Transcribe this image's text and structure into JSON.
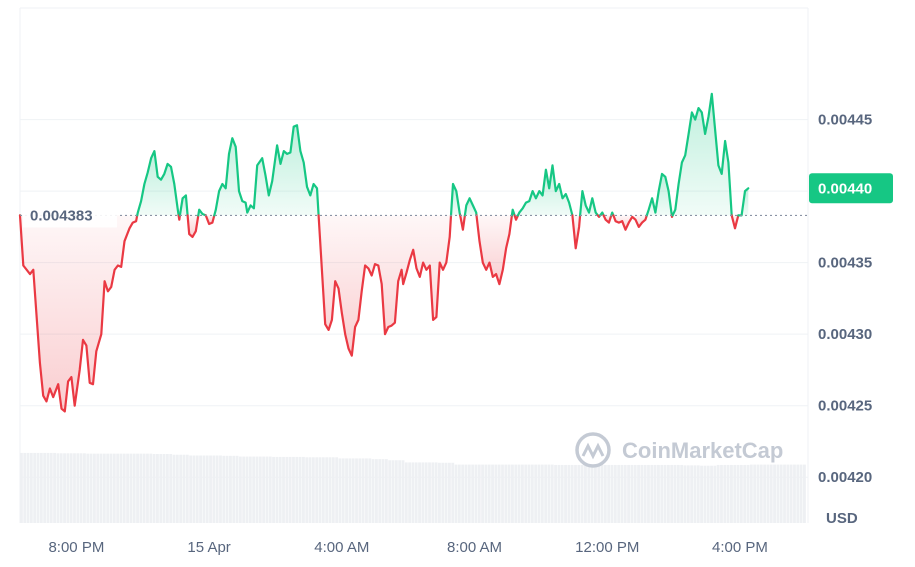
{
  "watermark": "CoinMarketCap",
  "chart_data": {
    "type": "line",
    "unit": "USD",
    "reference_price": "0.004383",
    "reference_value": 0.004383,
    "current_price": "0.00440",
    "current_value": 0.004402,
    "colors": {
      "up": "#16c784",
      "down": "#ea3943",
      "current_badge": "#16c784"
    },
    "ylim": [
      0.004168,
      0.004528
    ],
    "y_ticks": [
      {
        "label": "0.00445",
        "value": 0.00445
      },
      {
        "label": "0.00440",
        "value": 0.0044
      },
      {
        "label": "0.00435",
        "value": 0.00435
      },
      {
        "label": "0.00430",
        "value": 0.0043
      },
      {
        "label": "0.00425",
        "value": 0.00425
      },
      {
        "label": "0.00420",
        "value": 0.0042
      }
    ],
    "x_ticks": [
      "8:00 PM",
      "15 Apr",
      "4:00 AM",
      "8:00 AM",
      "12:00 PM",
      "4:00 PM"
    ],
    "x_tick_positions": [
      1.7,
      5.7,
      9.7,
      13.7,
      17.7,
      21.7
    ],
    "x_range": [
      0,
      23.75
    ],
    "grid": true,
    "series": [
      {
        "values": [
          [
            0.0,
            0.004383
          ],
          [
            0.1,
            0.004348
          ],
          [
            0.3,
            0.004342
          ],
          [
            0.4,
            0.004345
          ],
          [
            0.6,
            0.00428
          ],
          [
            0.7,
            0.004257
          ],
          [
            0.8,
            0.004253
          ],
          [
            0.9,
            0.004262
          ],
          [
            1.0,
            0.004256
          ],
          [
            1.15,
            0.004265
          ],
          [
            1.25,
            0.004248
          ],
          [
            1.35,
            0.004246
          ],
          [
            1.45,
            0.004267
          ],
          [
            1.55,
            0.00427
          ],
          [
            1.65,
            0.00425
          ],
          [
            1.8,
            0.004275
          ],
          [
            1.9,
            0.004296
          ],
          [
            2.0,
            0.004292
          ],
          [
            2.1,
            0.004266
          ],
          [
            2.2,
            0.004265
          ],
          [
            2.3,
            0.004288
          ],
          [
            2.45,
            0.0043
          ],
          [
            2.55,
            0.004337
          ],
          [
            2.65,
            0.00433
          ],
          [
            2.75,
            0.004333
          ],
          [
            2.85,
            0.004345
          ],
          [
            2.95,
            0.004348
          ],
          [
            3.05,
            0.004347
          ],
          [
            3.15,
            0.004365
          ],
          [
            3.3,
            0.004374
          ],
          [
            3.4,
            0.004378
          ],
          [
            3.5,
            0.004379
          ],
          [
            3.55,
            0.004385
          ],
          [
            3.65,
            0.004393
          ],
          [
            3.75,
            0.004405
          ],
          [
            3.85,
            0.004413
          ],
          [
            3.95,
            0.004423
          ],
          [
            4.05,
            0.004428
          ],
          [
            4.15,
            0.00441
          ],
          [
            4.25,
            0.004408
          ],
          [
            4.35,
            0.004412
          ],
          [
            4.45,
            0.004419
          ],
          [
            4.55,
            0.004417
          ],
          [
            4.65,
            0.004405
          ],
          [
            4.75,
            0.004388
          ],
          [
            4.8,
            0.00438
          ],
          [
            4.9,
            0.004395
          ],
          [
            5.0,
            0.004397
          ],
          [
            5.1,
            0.00437
          ],
          [
            5.2,
            0.004368
          ],
          [
            5.3,
            0.004372
          ],
          [
            5.4,
            0.004387
          ],
          [
            5.5,
            0.004384
          ],
          [
            5.6,
            0.004383
          ],
          [
            5.7,
            0.004377
          ],
          [
            5.8,
            0.004378
          ],
          [
            5.9,
            0.004387
          ],
          [
            6.0,
            0.0044
          ],
          [
            6.1,
            0.004405
          ],
          [
            6.2,
            0.004402
          ],
          [
            6.3,
            0.004426
          ],
          [
            6.4,
            0.004437
          ],
          [
            6.5,
            0.004431
          ],
          [
            6.6,
            0.0044
          ],
          [
            6.7,
            0.004393
          ],
          [
            6.8,
            0.004392
          ],
          [
            6.85,
            0.004385
          ],
          [
            6.95,
            0.00439
          ],
          [
            7.05,
            0.004388
          ],
          [
            7.15,
            0.004418
          ],
          [
            7.3,
            0.004423
          ],
          [
            7.4,
            0.004411
          ],
          [
            7.5,
            0.004397
          ],
          [
            7.6,
            0.004407
          ],
          [
            7.75,
            0.004432
          ],
          [
            7.85,
            0.004419
          ],
          [
            7.95,
            0.004428
          ],
          [
            8.05,
            0.004426
          ],
          [
            8.15,
            0.004427
          ],
          [
            8.25,
            0.004445
          ],
          [
            8.35,
            0.004446
          ],
          [
            8.45,
            0.004428
          ],
          [
            8.55,
            0.00442
          ],
          [
            8.65,
            0.004403
          ],
          [
            8.75,
            0.004397
          ],
          [
            8.85,
            0.004405
          ],
          [
            8.95,
            0.004402
          ],
          [
            9.0,
            0.004383
          ],
          [
            9.1,
            0.004345
          ],
          [
            9.2,
            0.004307
          ],
          [
            9.3,
            0.004303
          ],
          [
            9.4,
            0.00431
          ],
          [
            9.5,
            0.004337
          ],
          [
            9.6,
            0.004332
          ],
          [
            9.7,
            0.004315
          ],
          [
            9.8,
            0.0043
          ],
          [
            9.9,
            0.00429
          ],
          [
            10.0,
            0.004285
          ],
          [
            10.1,
            0.004305
          ],
          [
            10.2,
            0.00431
          ],
          [
            10.3,
            0.00433
          ],
          [
            10.4,
            0.004348
          ],
          [
            10.5,
            0.004346
          ],
          [
            10.6,
            0.004341
          ],
          [
            10.7,
            0.004349
          ],
          [
            10.8,
            0.004348
          ],
          [
            10.9,
            0.004335
          ],
          [
            11.0,
            0.0043
          ],
          [
            11.1,
            0.004305
          ],
          [
            11.2,
            0.004306
          ],
          [
            11.3,
            0.004308
          ],
          [
            11.4,
            0.004337
          ],
          [
            11.5,
            0.004345
          ],
          [
            11.55,
            0.004335
          ],
          [
            11.65,
            0.004343
          ],
          [
            11.75,
            0.004352
          ],
          [
            11.85,
            0.004359
          ],
          [
            11.95,
            0.004346
          ],
          [
            12.05,
            0.00434
          ],
          [
            12.15,
            0.00435
          ],
          [
            12.25,
            0.004345
          ],
          [
            12.35,
            0.004348
          ],
          [
            12.45,
            0.00431
          ],
          [
            12.55,
            0.004312
          ],
          [
            12.65,
            0.00435
          ],
          [
            12.75,
            0.004345
          ],
          [
            12.85,
            0.00435
          ],
          [
            12.95,
            0.004368
          ],
          [
            13.05,
            0.004405
          ],
          [
            13.15,
            0.0044
          ],
          [
            13.25,
            0.004385
          ],
          [
            13.35,
            0.004373
          ],
          [
            13.45,
            0.00439
          ],
          [
            13.55,
            0.004395
          ],
          [
            13.65,
            0.00439
          ],
          [
            13.75,
            0.004385
          ],
          [
            13.85,
            0.004365
          ],
          [
            13.95,
            0.00435
          ],
          [
            14.05,
            0.004345
          ],
          [
            14.15,
            0.00435
          ],
          [
            14.25,
            0.00434
          ],
          [
            14.35,
            0.004342
          ],
          [
            14.45,
            0.004335
          ],
          [
            14.55,
            0.004345
          ],
          [
            14.65,
            0.00436
          ],
          [
            14.75,
            0.00437
          ],
          [
            14.85,
            0.004387
          ],
          [
            14.95,
            0.00438
          ],
          [
            15.05,
            0.004385
          ],
          [
            15.15,
            0.004388
          ],
          [
            15.25,
            0.004392
          ],
          [
            15.35,
            0.004393
          ],
          [
            15.45,
            0.0044
          ],
          [
            15.55,
            0.004395
          ],
          [
            15.65,
            0.0044
          ],
          [
            15.75,
            0.004397
          ],
          [
            15.85,
            0.004415
          ],
          [
            15.95,
            0.004402
          ],
          [
            16.05,
            0.004418
          ],
          [
            16.15,
            0.0044
          ],
          [
            16.25,
            0.004405
          ],
          [
            16.35,
            0.004395
          ],
          [
            16.45,
            0.004398
          ],
          [
            16.55,
            0.004392
          ],
          [
            16.65,
            0.004383
          ],
          [
            16.75,
            0.00436
          ],
          [
            16.85,
            0.004375
          ],
          [
            16.95,
            0.0044
          ],
          [
            17.05,
            0.00439
          ],
          [
            17.15,
            0.004385
          ],
          [
            17.25,
            0.004395
          ],
          [
            17.35,
            0.004385
          ],
          [
            17.45,
            0.004382
          ],
          [
            17.55,
            0.004385
          ],
          [
            17.65,
            0.00438
          ],
          [
            17.75,
            0.004378
          ],
          [
            17.85,
            0.004385
          ],
          [
            17.95,
            0.004379
          ],
          [
            18.05,
            0.004378
          ],
          [
            18.15,
            0.004379
          ],
          [
            18.25,
            0.004373
          ],
          [
            18.35,
            0.004378
          ],
          [
            18.45,
            0.004382
          ],
          [
            18.55,
            0.00438
          ],
          [
            18.65,
            0.004375
          ],
          [
            18.75,
            0.004378
          ],
          [
            18.85,
            0.00438
          ],
          [
            18.95,
            0.004387
          ],
          [
            19.05,
            0.004395
          ],
          [
            19.15,
            0.004385
          ],
          [
            19.25,
            0.0044
          ],
          [
            19.35,
            0.004412
          ],
          [
            19.45,
            0.00441
          ],
          [
            19.55,
            0.0044
          ],
          [
            19.65,
            0.004382
          ],
          [
            19.75,
            0.004387
          ],
          [
            19.85,
            0.004405
          ],
          [
            19.95,
            0.00442
          ],
          [
            20.05,
            0.004425
          ],
          [
            20.15,
            0.00444
          ],
          [
            20.25,
            0.004455
          ],
          [
            20.35,
            0.00445
          ],
          [
            20.45,
            0.004458
          ],
          [
            20.55,
            0.004455
          ],
          [
            20.65,
            0.00444
          ],
          [
            20.75,
            0.004452
          ],
          [
            20.85,
            0.004468
          ],
          [
            20.95,
            0.004443
          ],
          [
            21.05,
            0.004418
          ],
          [
            21.15,
            0.004412
          ],
          [
            21.25,
            0.004435
          ],
          [
            21.35,
            0.00442
          ],
          [
            21.45,
            0.004383
          ],
          [
            21.55,
            0.004374
          ],
          [
            21.65,
            0.004383
          ],
          [
            21.75,
            0.004383
          ],
          [
            21.85,
            0.0044
          ],
          [
            21.95,
            0.004402
          ]
        ]
      }
    ],
    "volume_values": [
      [
        0.0,
        0.96
      ],
      [
        1.0,
        0.955
      ],
      [
        2.0,
        0.95
      ],
      [
        3.0,
        0.95
      ],
      [
        4.0,
        0.945
      ],
      [
        4.5,
        0.935
      ],
      [
        5.0,
        0.925
      ],
      [
        6.0,
        0.92
      ],
      [
        6.5,
        0.91
      ],
      [
        7.5,
        0.905
      ],
      [
        8.5,
        0.9
      ],
      [
        9.5,
        0.885
      ],
      [
        10.5,
        0.875
      ],
      [
        11.0,
        0.86
      ],
      [
        11.5,
        0.83
      ],
      [
        12.5,
        0.825
      ],
      [
        13.0,
        0.8
      ],
      [
        14.0,
        0.8
      ],
      [
        15.0,
        0.8
      ],
      [
        16.0,
        0.795
      ],
      [
        17.0,
        0.795
      ],
      [
        18.0,
        0.795
      ],
      [
        19.0,
        0.795
      ],
      [
        20.0,
        0.79
      ],
      [
        20.5,
        0.785
      ],
      [
        21.0,
        0.795
      ],
      [
        22.0,
        0.8
      ]
    ]
  }
}
